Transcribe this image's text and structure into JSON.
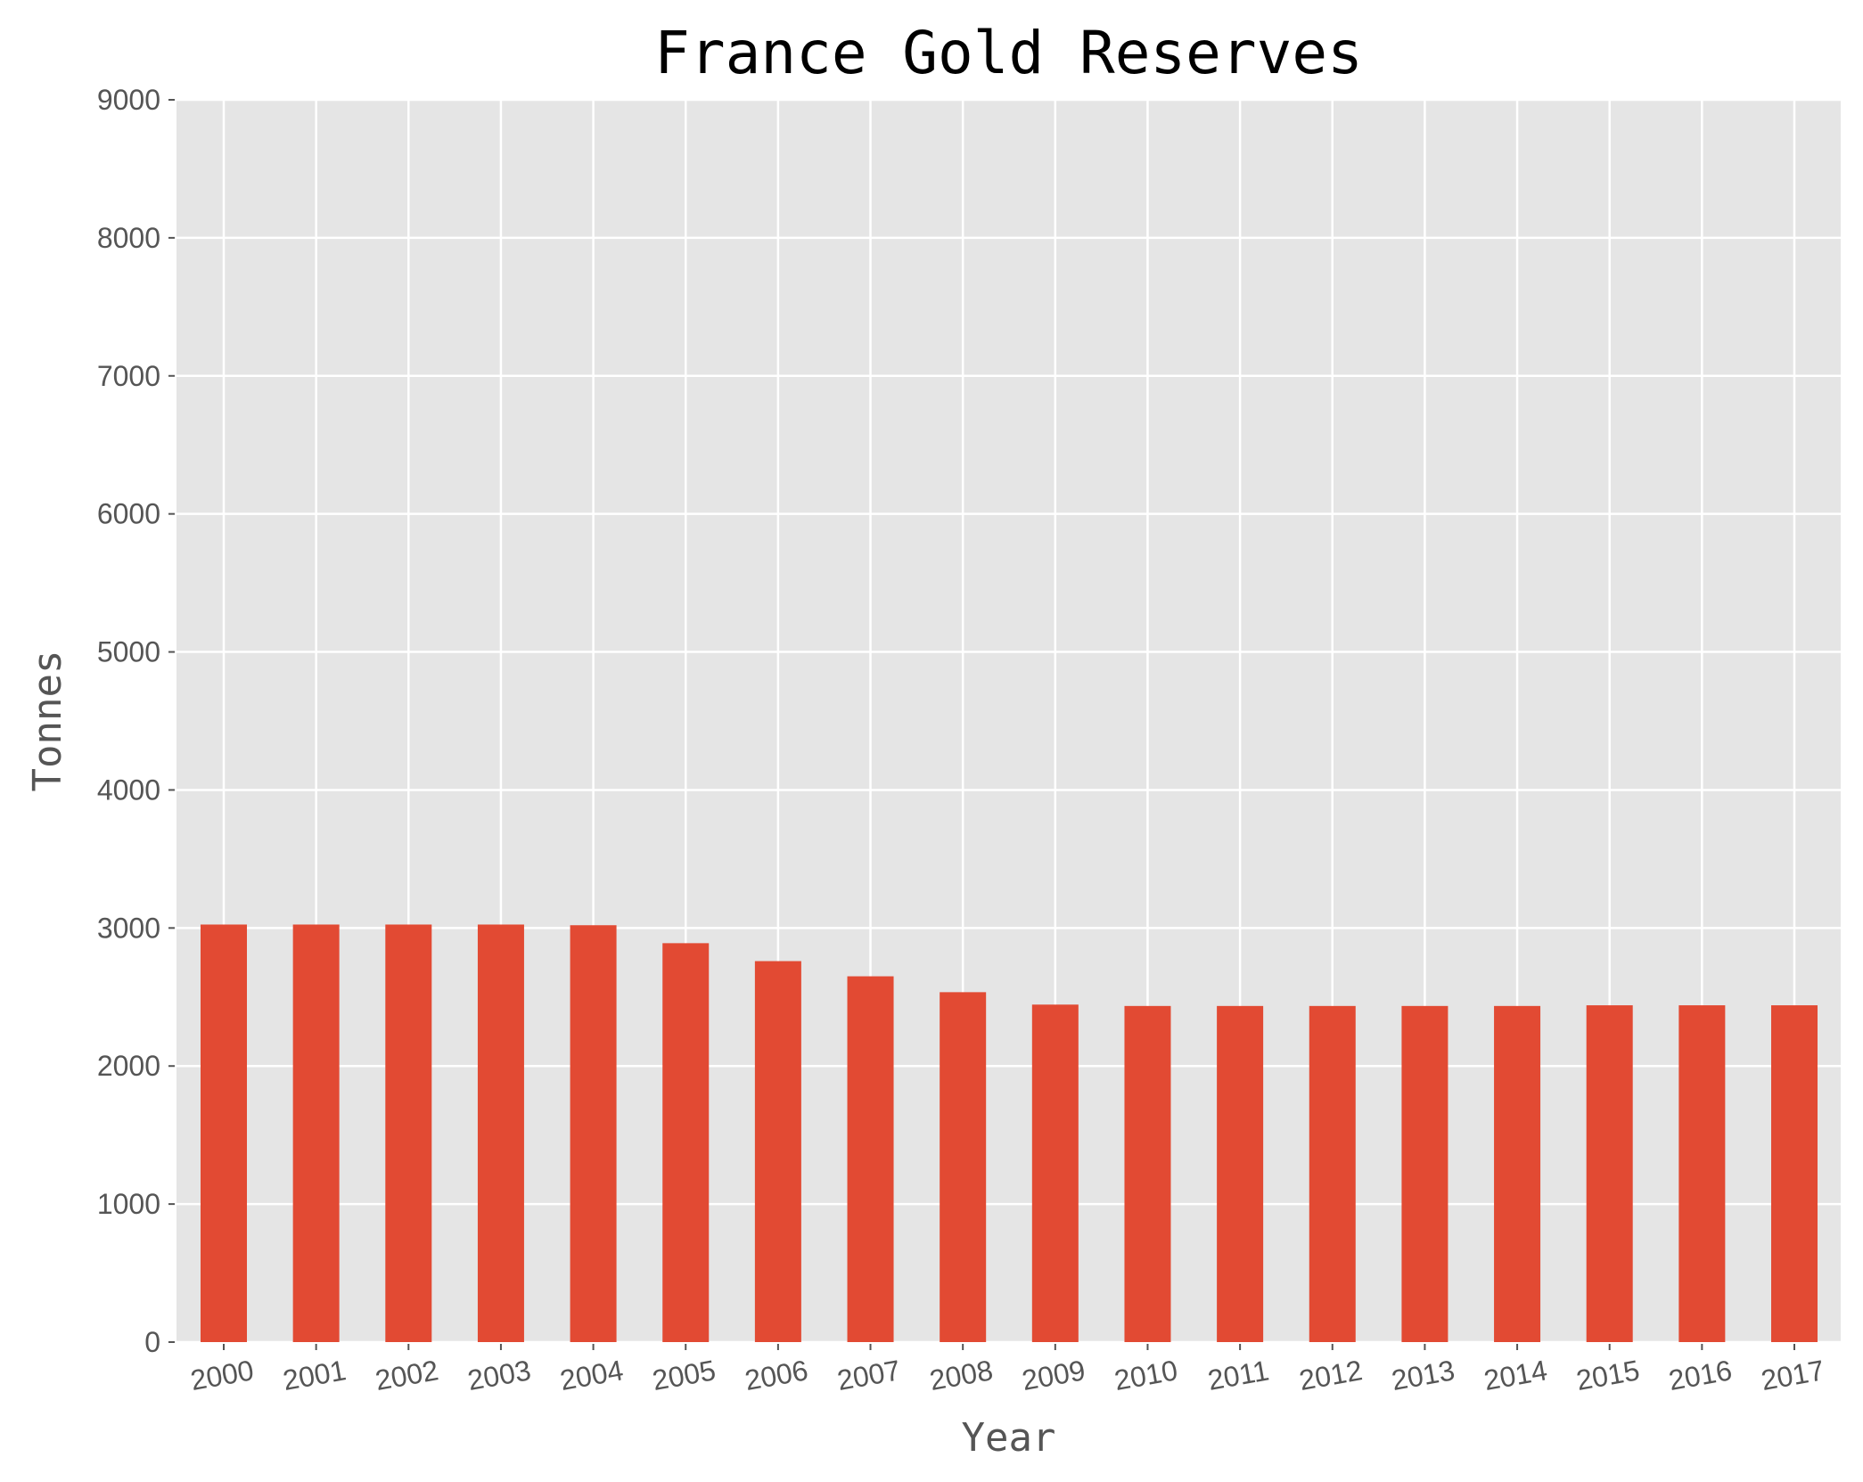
{
  "chart_data": {
    "type": "bar",
    "title": "France Gold Reserves",
    "xlabel": "Year",
    "ylabel": "Tonnes",
    "categories": [
      "2000",
      "2001",
      "2002",
      "2003",
      "2004",
      "2005",
      "2006",
      "2007",
      "2008",
      "2009",
      "2010",
      "2011",
      "2012",
      "2013",
      "2014",
      "2015",
      "2016",
      "2017"
    ],
    "values": [
      3025,
      3025,
      3025,
      3025,
      3020,
      2890,
      2760,
      2650,
      2535,
      2445,
      2435,
      2435,
      2435,
      2435,
      2435,
      2440,
      2440,
      2440
    ],
    "ylim": [
      0,
      9000
    ],
    "yticks": [
      "0",
      "1000",
      "2000",
      "3000",
      "4000",
      "5000",
      "6000",
      "7000",
      "8000",
      "9000"
    ],
    "grid": true,
    "colors": {
      "bar": "#E24A33",
      "plot_background": "#E5E5E5",
      "grid": "#FFFFFF",
      "tick_text": "#555555"
    }
  }
}
